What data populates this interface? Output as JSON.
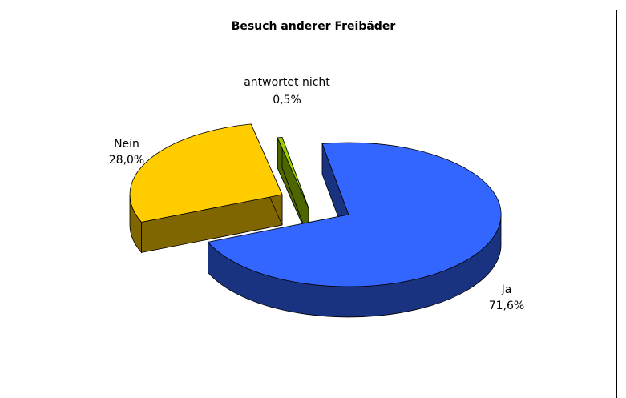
{
  "chart_data": {
    "type": "pie",
    "title": "Besuch anderer Freibäder",
    "categories": [
      "Ja",
      "Nein",
      "antwortet nicht"
    ],
    "values": [
      71.6,
      28.0,
      0.5
    ],
    "value_labels": [
      "71,6%",
      "28,0%",
      "0,5%"
    ],
    "colors": [
      "#3366ff",
      "#ffcc00",
      "#99cc00"
    ]
  }
}
